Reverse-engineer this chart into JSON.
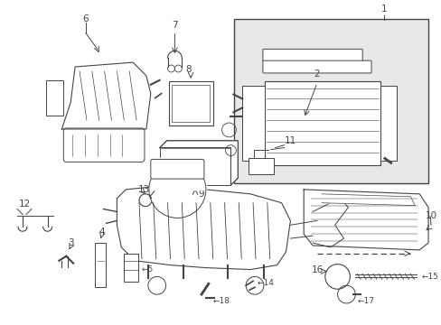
{
  "background_color": "#ffffff",
  "line_color": "#444444",
  "figsize": [
    4.89,
    3.6
  ],
  "dpi": 100
}
